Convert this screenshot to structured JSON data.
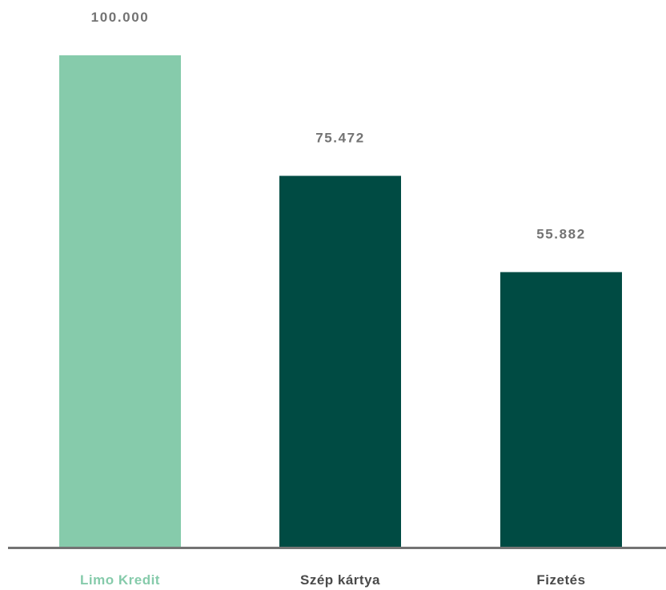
{
  "chart_data": {
    "type": "bar",
    "categories": [
      "Limo Kredit",
      "Szép kártya",
      "Fizetés"
    ],
    "values": [
      100000,
      75472,
      55882
    ],
    "value_labels": [
      "100.000",
      "75.472",
      "55.882"
    ],
    "title": "",
    "xlabel": "",
    "ylabel": "",
    "ylim": [
      0,
      100000
    ],
    "grid": false,
    "legend": "none"
  },
  "colors": {
    "highlight_bar": "#86cbab",
    "bar": "#004b43",
    "highlight_label": "#86cbab",
    "label": "#4a4a4a",
    "value_label": "#737373",
    "axis": "#737373"
  },
  "highlight_index": 0
}
